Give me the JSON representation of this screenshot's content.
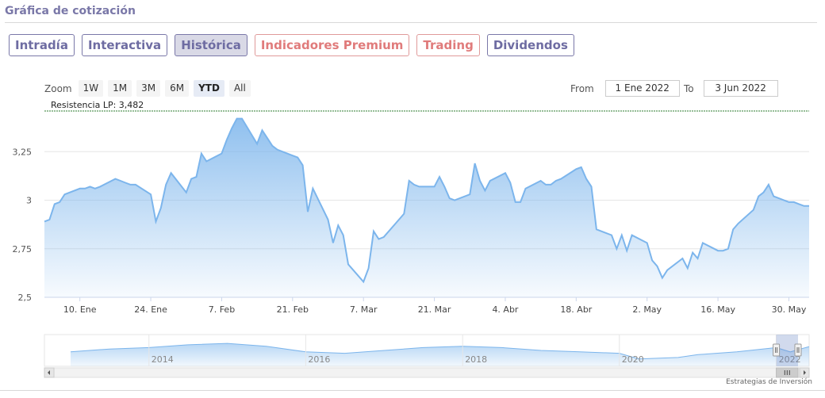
{
  "header": {
    "title": "Gráfica de cotización"
  },
  "tabs": [
    {
      "label": "Intradía",
      "active": false,
      "premium": false
    },
    {
      "label": "Interactiva",
      "active": false,
      "premium": false
    },
    {
      "label": "Histórica",
      "active": true,
      "premium": false
    },
    {
      "label": "Indicadores Premium",
      "active": false,
      "premium": true
    },
    {
      "label": "Trading",
      "active": false,
      "premium": true
    },
    {
      "label": "Dividendos",
      "active": false,
      "premium": false
    }
  ],
  "zoom": {
    "label": "Zoom",
    "buttons": [
      {
        "label": "1W",
        "selected": false
      },
      {
        "label": "1M",
        "selected": false
      },
      {
        "label": "3M",
        "selected": false
      },
      {
        "label": "6M",
        "selected": false
      },
      {
        "label": "YTD",
        "selected": true
      },
      {
        "label": "All",
        "selected": false
      }
    ]
  },
  "range": {
    "from_label": "From",
    "from_value": "1 Ene 2022",
    "to_label": "To",
    "to_value": "3 Jun 2022"
  },
  "colors": {
    "line": "#7cb5ec",
    "accent": "#7a78a8",
    "premium": "#e07b7b",
    "resistance": "#2e7d32"
  },
  "chart_data": {
    "type": "area",
    "resistance": {
      "label": "Resistencia LP: 3,482",
      "value": 3.482
    },
    "x_ticks": [
      "10. Ene",
      "24. Ene",
      "7. Feb",
      "21. Feb",
      "7. Mar",
      "21. Mar",
      "4. Abr",
      "18. Abr",
      "2. May",
      "16. May",
      "30. May"
    ],
    "y_ticks": [
      "2,5",
      "2,75",
      "3",
      "3,25"
    ],
    "y_tick_values": [
      2.5,
      2.75,
      3.0,
      3.25
    ],
    "ylim": [
      2.5,
      3.5
    ],
    "xlim": [
      "2022-01-03",
      "2022-06-03"
    ],
    "grid": true,
    "series": [
      {
        "values": [
          [
            "2022-01-03",
            2.89
          ],
          [
            "2022-01-04",
            2.9
          ],
          [
            "2022-01-05",
            2.98
          ],
          [
            "2022-01-06",
            2.99
          ],
          [
            "2022-01-07",
            3.03
          ],
          [
            "2022-01-10",
            3.06
          ],
          [
            "2022-01-11",
            3.06
          ],
          [
            "2022-01-12",
            3.07
          ],
          [
            "2022-01-13",
            3.06
          ],
          [
            "2022-01-14",
            3.07
          ],
          [
            "2022-01-17",
            3.11
          ],
          [
            "2022-01-18",
            3.1
          ],
          [
            "2022-01-19",
            3.09
          ],
          [
            "2022-01-20",
            3.08
          ],
          [
            "2022-01-21",
            3.08
          ],
          [
            "2022-01-24",
            3.03
          ],
          [
            "2022-01-25",
            2.89
          ],
          [
            "2022-01-26",
            2.96
          ],
          [
            "2022-01-27",
            3.08
          ],
          [
            "2022-01-28",
            3.14
          ],
          [
            "2022-01-31",
            3.04
          ],
          [
            "2022-02-01",
            3.11
          ],
          [
            "2022-02-02",
            3.12
          ],
          [
            "2022-02-03",
            3.24
          ],
          [
            "2022-02-04",
            3.2
          ],
          [
            "2022-02-07",
            3.24
          ],
          [
            "2022-02-08",
            3.31
          ],
          [
            "2022-02-09",
            3.37
          ],
          [
            "2022-02-10",
            3.42
          ],
          [
            "2022-02-11",
            3.42
          ],
          [
            "2022-02-14",
            3.29
          ],
          [
            "2022-02-15",
            3.36
          ],
          [
            "2022-02-16",
            3.32
          ],
          [
            "2022-02-17",
            3.28
          ],
          [
            "2022-02-18",
            3.26
          ],
          [
            "2022-02-21",
            3.23
          ],
          [
            "2022-02-22",
            3.22
          ],
          [
            "2022-02-23",
            3.18
          ],
          [
            "2022-02-24",
            2.94
          ],
          [
            "2022-02-25",
            3.06
          ],
          [
            "2022-02-28",
            2.9
          ],
          [
            "2022-03-01",
            2.78
          ],
          [
            "2022-03-02",
            2.87
          ],
          [
            "2022-03-03",
            2.82
          ],
          [
            "2022-03-04",
            2.67
          ],
          [
            "2022-03-07",
            2.58
          ],
          [
            "2022-03-08",
            2.65
          ],
          [
            "2022-03-09",
            2.84
          ],
          [
            "2022-03-10",
            2.8
          ],
          [
            "2022-03-11",
            2.81
          ],
          [
            "2022-03-14",
            2.9
          ],
          [
            "2022-03-15",
            2.93
          ],
          [
            "2022-03-16",
            3.1
          ],
          [
            "2022-03-17",
            3.08
          ],
          [
            "2022-03-18",
            3.07
          ],
          [
            "2022-03-21",
            3.07
          ],
          [
            "2022-03-22",
            3.12
          ],
          [
            "2022-03-23",
            3.07
          ],
          [
            "2022-03-24",
            3.01
          ],
          [
            "2022-03-25",
            3.0
          ],
          [
            "2022-03-28",
            3.03
          ],
          [
            "2022-03-29",
            3.19
          ],
          [
            "2022-03-30",
            3.1
          ],
          [
            "2022-03-31",
            3.05
          ],
          [
            "2022-04-01",
            3.1
          ],
          [
            "2022-04-04",
            3.14
          ],
          [
            "2022-04-05",
            3.09
          ],
          [
            "2022-04-06",
            2.99
          ],
          [
            "2022-04-07",
            2.99
          ],
          [
            "2022-04-08",
            3.06
          ],
          [
            "2022-04-11",
            3.1
          ],
          [
            "2022-04-12",
            3.08
          ],
          [
            "2022-04-13",
            3.08
          ],
          [
            "2022-04-14",
            3.1
          ],
          [
            "2022-04-15",
            3.11
          ],
          [
            "2022-04-18",
            3.16
          ],
          [
            "2022-04-19",
            3.17
          ],
          [
            "2022-04-20",
            3.11
          ],
          [
            "2022-04-21",
            3.07
          ],
          [
            "2022-04-22",
            2.85
          ],
          [
            "2022-04-25",
            2.82
          ],
          [
            "2022-04-26",
            2.75
          ],
          [
            "2022-04-27",
            2.82
          ],
          [
            "2022-04-28",
            2.74
          ],
          [
            "2022-04-29",
            2.82
          ],
          [
            "2022-05-02",
            2.78
          ],
          [
            "2022-05-03",
            2.69
          ],
          [
            "2022-05-04",
            2.66
          ],
          [
            "2022-05-05",
            2.6
          ],
          [
            "2022-05-06",
            2.64
          ],
          [
            "2022-05-09",
            2.7
          ],
          [
            "2022-05-10",
            2.65
          ],
          [
            "2022-05-11",
            2.73
          ],
          [
            "2022-05-12",
            2.7
          ],
          [
            "2022-05-13",
            2.78
          ],
          [
            "2022-05-16",
            2.74
          ],
          [
            "2022-05-17",
            2.74
          ],
          [
            "2022-05-18",
            2.75
          ],
          [
            "2022-05-19",
            2.85
          ],
          [
            "2022-05-20",
            2.88
          ],
          [
            "2022-05-23",
            2.95
          ],
          [
            "2022-05-24",
            3.02
          ],
          [
            "2022-05-25",
            3.04
          ],
          [
            "2022-05-26",
            3.08
          ],
          [
            "2022-05-27",
            3.02
          ],
          [
            "2022-05-30",
            2.99
          ],
          [
            "2022-05-31",
            2.99
          ],
          [
            "2022-06-01",
            2.98
          ],
          [
            "2022-06-02",
            2.97
          ],
          [
            "2022-06-03",
            2.97
          ]
        ]
      }
    ],
    "navigator": {
      "year_labels": [
        "2014",
        "2016",
        "2018",
        "2020",
        "2022"
      ],
      "values": [
        [
          "2013-01-01",
          2.6
        ],
        [
          "2013-07-01",
          2.8
        ],
        [
          "2014-01-01",
          2.9
        ],
        [
          "2014-07-01",
          3.1
        ],
        [
          "2015-01-01",
          3.2
        ],
        [
          "2015-07-01",
          3.0
        ],
        [
          "2016-01-01",
          2.6
        ],
        [
          "2016-07-01",
          2.5
        ],
        [
          "2017-01-01",
          2.7
        ],
        [
          "2017-07-01",
          2.9
        ],
        [
          "2018-01-01",
          3.0
        ],
        [
          "2018-07-01",
          2.9
        ],
        [
          "2019-01-01",
          2.7
        ],
        [
          "2019-07-01",
          2.6
        ],
        [
          "2020-01-01",
          2.5
        ],
        [
          "2020-04-01",
          2.1
        ],
        [
          "2020-10-01",
          2.2
        ],
        [
          "2021-01-01",
          2.4
        ],
        [
          "2021-07-01",
          2.6
        ],
        [
          "2022-01-01",
          2.9
        ],
        [
          "2022-03-07",
          2.6
        ],
        [
          "2022-06-03",
          2.97
        ]
      ]
    }
  },
  "footer": {
    "credit": "Estrategias de Inversión"
  }
}
